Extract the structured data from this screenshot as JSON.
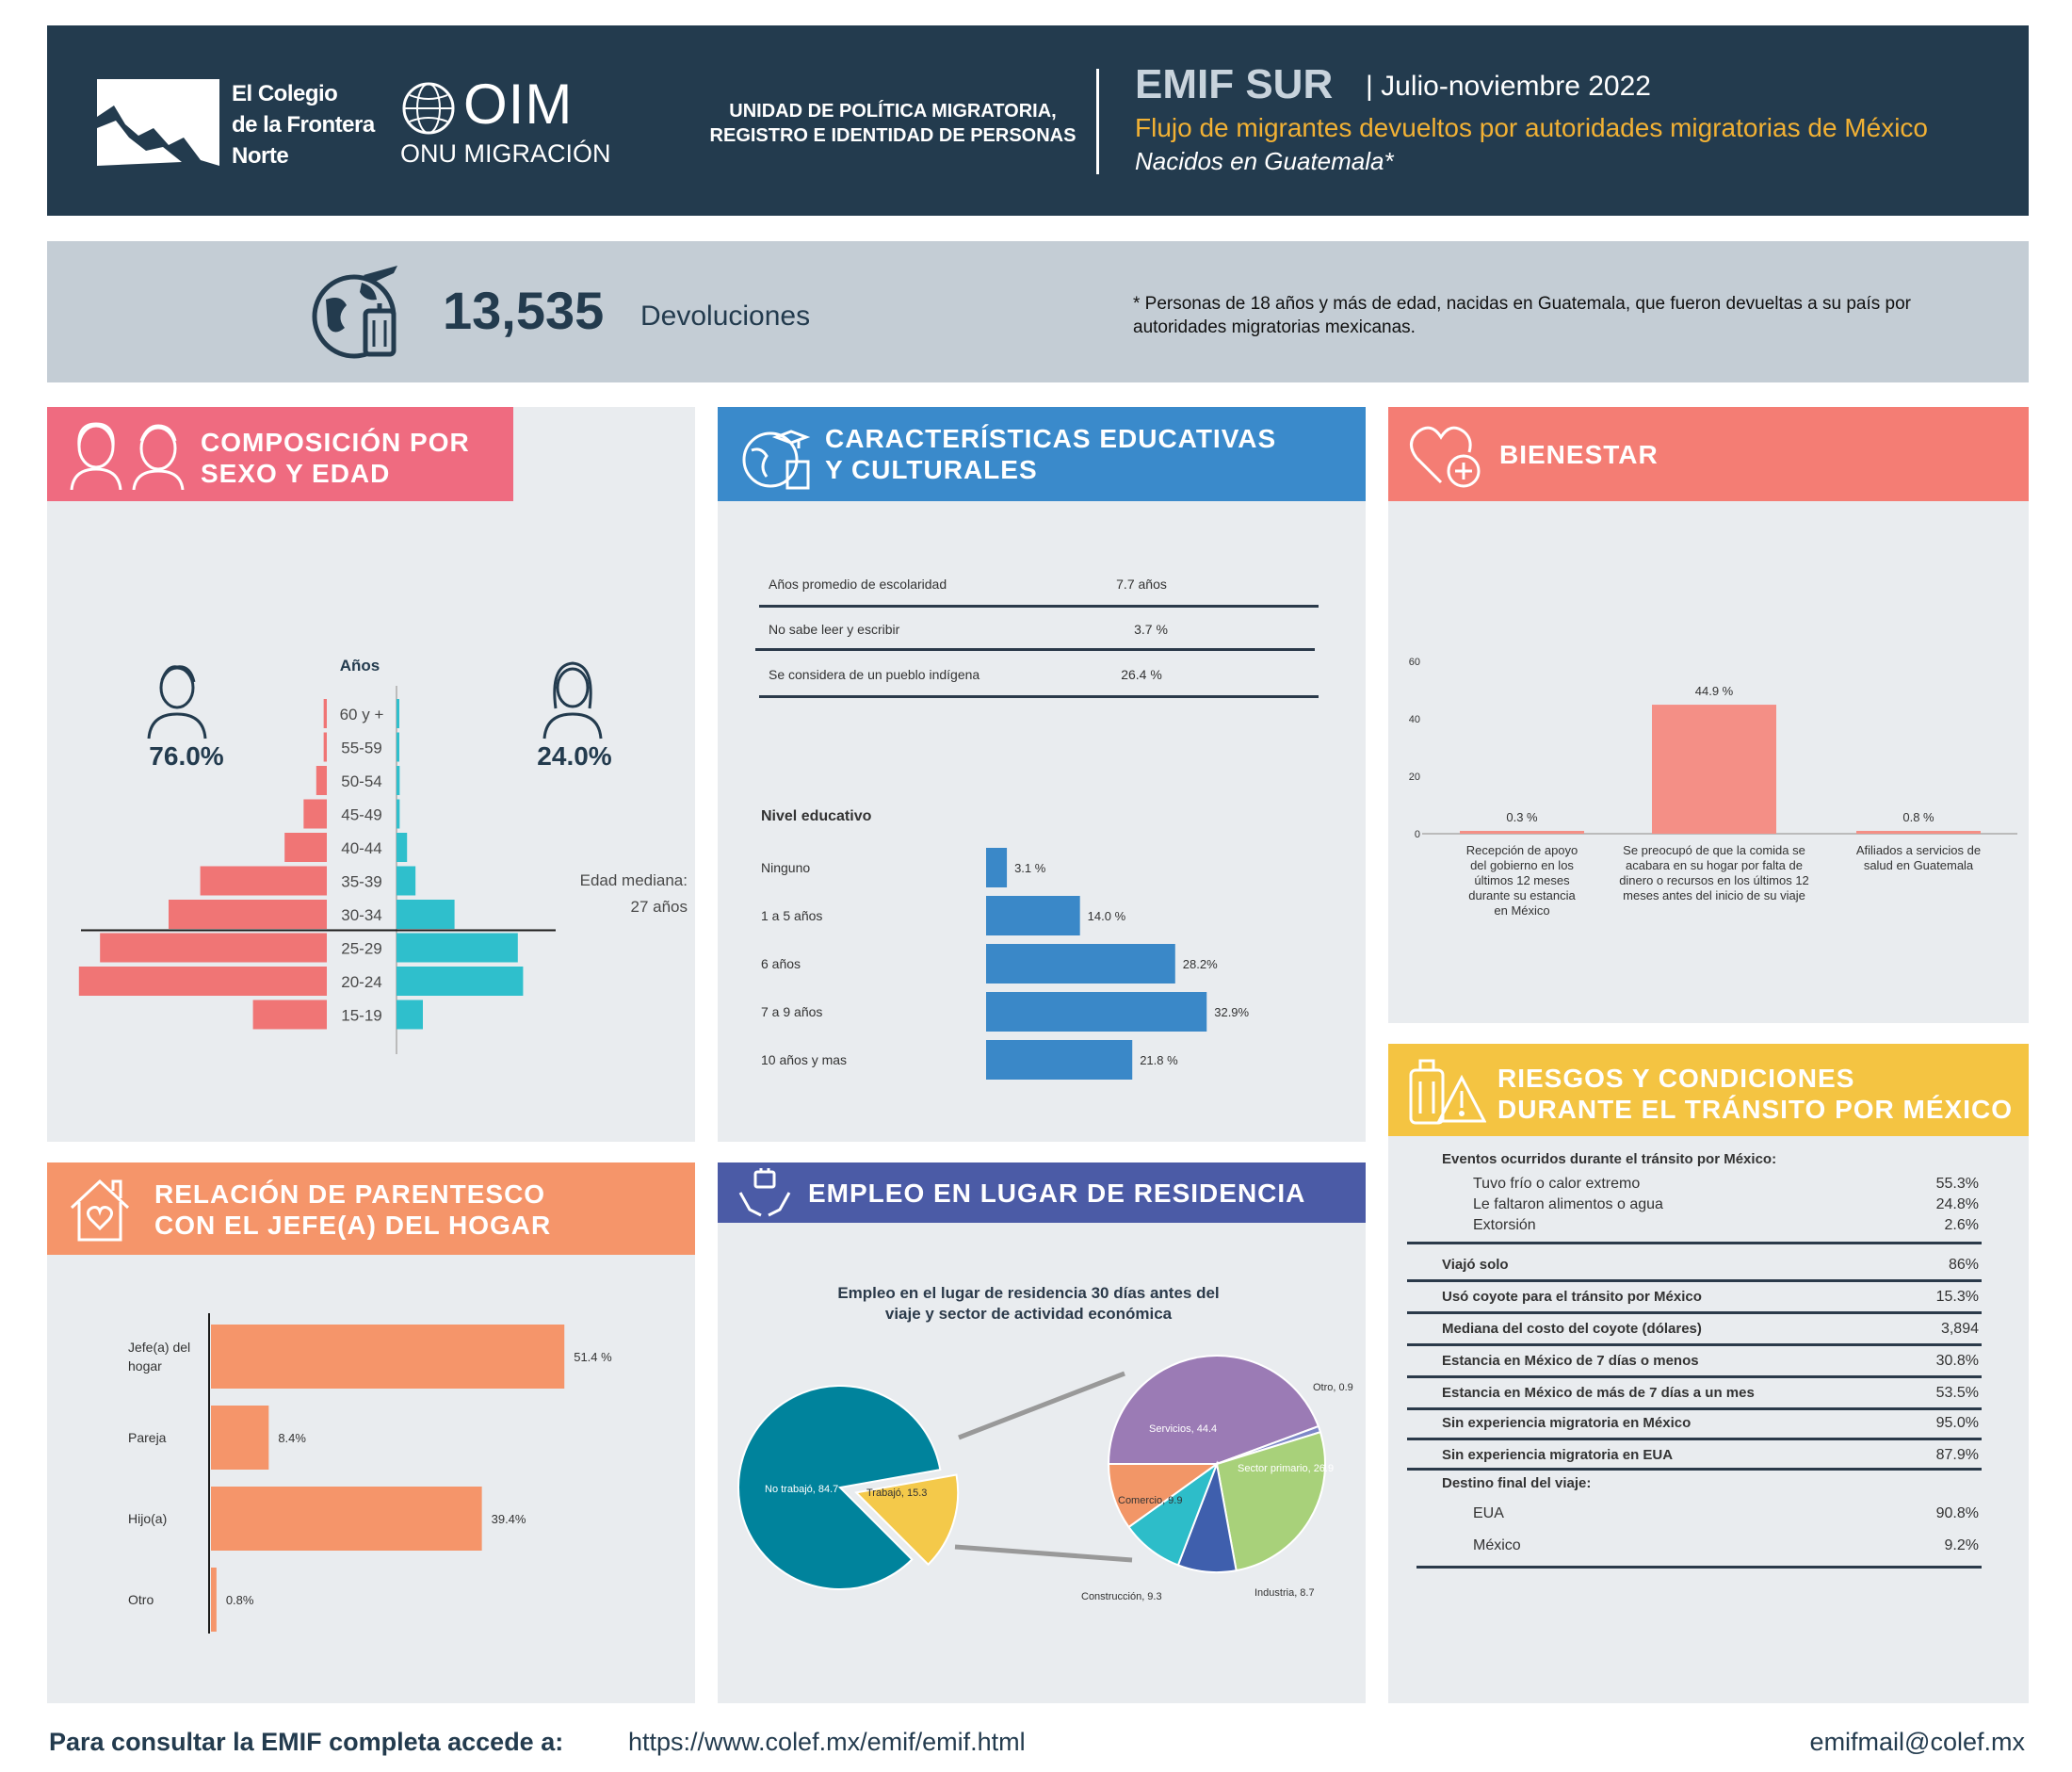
{
  "header": {
    "colef_line1": "El Colegio",
    "colef_line2": "de la Frontera",
    "colef_line3": "Norte",
    "oim_text": "OIM",
    "oim_sub": "ONU MIGRACIÓN",
    "unit_line1": "UNIDAD DE POLÍTICA MIGRATORIA,",
    "unit_line2": "REGISTRO E IDENTIDAD DE PERSONAS",
    "survey": "EMIF SUR",
    "period": "| Julio-noviembre 2022",
    "subtitle": "Flujo de migrantes devueltos por autoridades migratorias de México",
    "subtitle2": "Nacidos en Guatemala*",
    "colors": {
      "bg": "#233b4e",
      "accent": "#f2b134"
    }
  },
  "summary": {
    "count": "13,535",
    "count_label": "Devoluciones",
    "note_line1": "* Personas de 18 años y más de edad, nacidas en Guatemala, que fueron devueltas a su país por",
    "note_line2": "autoridades migratorias mexicanas.",
    "icon": "travel-globe-icon"
  },
  "sexo_edad": {
    "title_line1": "COMPOSICIÓN POR",
    "title_line2": "SEXO Y EDAD",
    "years_label": "Años",
    "male_pct": "76.0%",
    "female_pct": "24.0%",
    "median_line1": "Edad mediana:",
    "median_line2": "27 años",
    "color_male": "#f07575",
    "color_female": "#2fbfcc",
    "chart_data": {
      "type": "bar",
      "orientation": "horizontal-pyramid",
      "categories": [
        "60 y +",
        "55-59",
        "50-54",
        "45-49",
        "40-44",
        "35-39",
        "30-34",
        "25-29",
        "20-24",
        "15-19"
      ],
      "series": [
        {
          "name": "Hombres",
          "values": [
            0.3,
            0.3,
            1.0,
            2.2,
            4.0,
            12.0,
            15.0,
            21.5,
            23.5,
            7.0
          ]
        },
        {
          "name": "Mujeres",
          "values": [
            0.1,
            0.2,
            0.3,
            0.3,
            1.0,
            1.8,
            5.5,
            11.5,
            12.0,
            2.5
          ]
        }
      ],
      "median_age": 27
    }
  },
  "educacion": {
    "title_line1": "CARACTERÍSTICAS EDUCATIVAS",
    "title_line2": "Y CULTURALES",
    "rows": [
      {
        "label": "Años promedio de escolaridad",
        "value": "7.7 años"
      },
      {
        "label": "No sabe leer y escribir",
        "value": "3.7 %"
      },
      {
        "label": "Se considera de un pueblo indígena",
        "value": "26.4 %"
      }
    ],
    "nivel_label": "Nivel educativo",
    "bar_color": "#3a88c8",
    "chart_data": {
      "type": "bar",
      "orientation": "horizontal",
      "categories": [
        "Ninguno",
        "1 a 5 años",
        "6 años",
        "7 a 9 años",
        "10 años y mas"
      ],
      "values": [
        3.1,
        14.0,
        28.2,
        32.9,
        21.8
      ],
      "value_labels": [
        "3.1 %",
        "14.0 %",
        "28.2%",
        "32.9%",
        "21.8 %"
      ]
    }
  },
  "bienestar": {
    "title": "BIENESTAR",
    "bar_color": "#f48f86",
    "chart_data": {
      "type": "bar",
      "categories": [
        [
          "Recepción de apoyo",
          "del gobierno en los",
          "últimos 12 meses",
          "durante su estancia",
          "en México"
        ],
        [
          "Se preocupó de que la comida se",
          "acabara en su hogar por falta de",
          "dinero o recursos  en los últimos 12",
          "meses antes del inicio de su viaje"
        ],
        [
          "Afiliados a servicios de",
          "salud en Guatemala"
        ]
      ],
      "values": [
        0.3,
        44.9,
        0.8
      ],
      "value_labels": [
        "0.3 %",
        "44.9 %",
        "0.8 %"
      ],
      "yticks": [
        "0",
        "20",
        "40",
        "60"
      ],
      "ylim": [
        0,
        60
      ]
    }
  },
  "riesgos": {
    "title_line1": "RIESGOS Y CONDICIONES",
    "title_line2": "DURANTE EL TRÁNSITO POR MÉXICO",
    "eventos_label": "Eventos ocurridos durante el tránsito por México:",
    "eventos": [
      {
        "label": "Tuvo frío o calor extremo",
        "value": "55.3%"
      },
      {
        "label": "Le faltaron alimentos o agua",
        "value": "24.8%"
      },
      {
        "label": "Extorsión",
        "value": "2.6%"
      }
    ],
    "rows": [
      {
        "label": "Viajó solo",
        "value": "86%"
      },
      {
        "label": "Usó coyote para el tránsito por México",
        "value": "15.3%"
      },
      {
        "label": "Mediana del costo del coyote (dólares)",
        "value": "3,894"
      },
      {
        "label": "Estancia en México de 7 días o menos",
        "value": "30.8%"
      },
      {
        "label": "Estancia en México de más de 7 días  a un mes",
        "value": "53.5%"
      },
      {
        "label": "Sin experiencia migratoria en México",
        "value": "95.0%"
      },
      {
        "label": "Sin experiencia migratoria en EUA",
        "value": "87.9%"
      }
    ],
    "destino_label": "Destino final del viaje:",
    "destino": [
      {
        "label": "EUA",
        "value": "90.8%"
      },
      {
        "label": "México",
        "value": "9.2%"
      }
    ]
  },
  "parentesco": {
    "title_line1": "RELACIÓN DE PARENTESCO",
    "title_line2": "CON EL JEFE(A) DEL HOGAR",
    "bar_color": "#f5956a",
    "chart_data": {
      "type": "bar",
      "orientation": "horizontal",
      "categories": [
        [
          "Jefe(a) del",
          "hogar"
        ],
        [
          "Pareja"
        ],
        [
          "Hijo(a)"
        ],
        [
          "Otro"
        ]
      ],
      "values": [
        51.4,
        8.4,
        39.4,
        0.8
      ],
      "value_labels": [
        "51.4 %",
        "8.4%",
        "39.4%",
        "0.8%"
      ]
    }
  },
  "empleo": {
    "title": "EMPLEO EN LUGAR DE RESIDENCIA",
    "chart_title_line1": "Empleo en el lugar de residencia 30 días antes del",
    "chart_title_line2": "viaje y sector de actividad económica",
    "chart_data": {
      "type": "pie",
      "main": [
        {
          "name": "No trabajó",
          "value": 84.7,
          "label": "No trabajó, 84.7",
          "color": "#00839c"
        },
        {
          "name": "Trabajó",
          "value": 15.3,
          "label": "Trabajó, 15.3",
          "color": "#f4c94a"
        }
      ],
      "sectors": [
        {
          "name": "Servicios",
          "value": 44.4,
          "label": "Servicios,  44.4",
          "color": "#9b7bb5"
        },
        {
          "name": "Otro",
          "value": 0.9,
          "label": "Otro, 0.9",
          "color": "#7d88c8"
        },
        {
          "name": "Sector primario",
          "value": 26.9,
          "label": "Sector primario, 26.9",
          "color": "#a8d17a"
        },
        {
          "name": "Industria",
          "value": 8.7,
          "label": "Industria, 8.7",
          "color": "#3f5fad"
        },
        {
          "name": "Construcción",
          "value": 9.3,
          "label": "Construcción, 9.3",
          "color": "#2dbdc9"
        },
        {
          "name": "Comercio",
          "value": 9.9,
          "label": "Comercio, 9.9",
          "color": "#f29667"
        }
      ]
    }
  },
  "footer": {
    "cta": "Para consultar la EMIF completa accede a:",
    "url": "https://www.colef.mx/emif/emif.html",
    "email": "emifmail@colef.mx"
  }
}
